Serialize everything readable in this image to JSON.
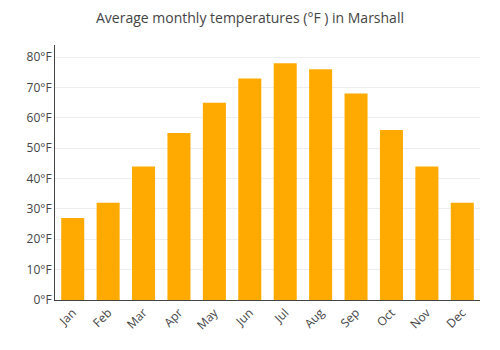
{
  "chart_data": {
    "type": "bar",
    "title": "Average monthly temperatures (°F ) in Marshall",
    "categories": [
      "Jan",
      "Feb",
      "Mar",
      "Apr",
      "May",
      "Jun",
      "Jul",
      "Aug",
      "Sep",
      "Oct",
      "Nov",
      "Dec"
    ],
    "values": [
      27,
      32,
      44,
      55,
      65,
      73,
      78,
      76,
      68,
      56,
      44,
      32
    ],
    "color": "#FFAA00",
    "ylim": [
      0,
      84
    ],
    "yticks": [
      {
        "value": 0,
        "label": "0°F"
      },
      {
        "value": 10,
        "label": "10°F"
      },
      {
        "value": 20,
        "label": "20°F"
      },
      {
        "value": 30,
        "label": "30°F"
      },
      {
        "value": 40,
        "label": "40°F"
      },
      {
        "value": 50,
        "label": "50°F"
      },
      {
        "value": 60,
        "label": "60°F"
      },
      {
        "value": 70,
        "label": "70°F"
      },
      {
        "value": 80,
        "label": "80°F"
      }
    ],
    "grid": true
  }
}
